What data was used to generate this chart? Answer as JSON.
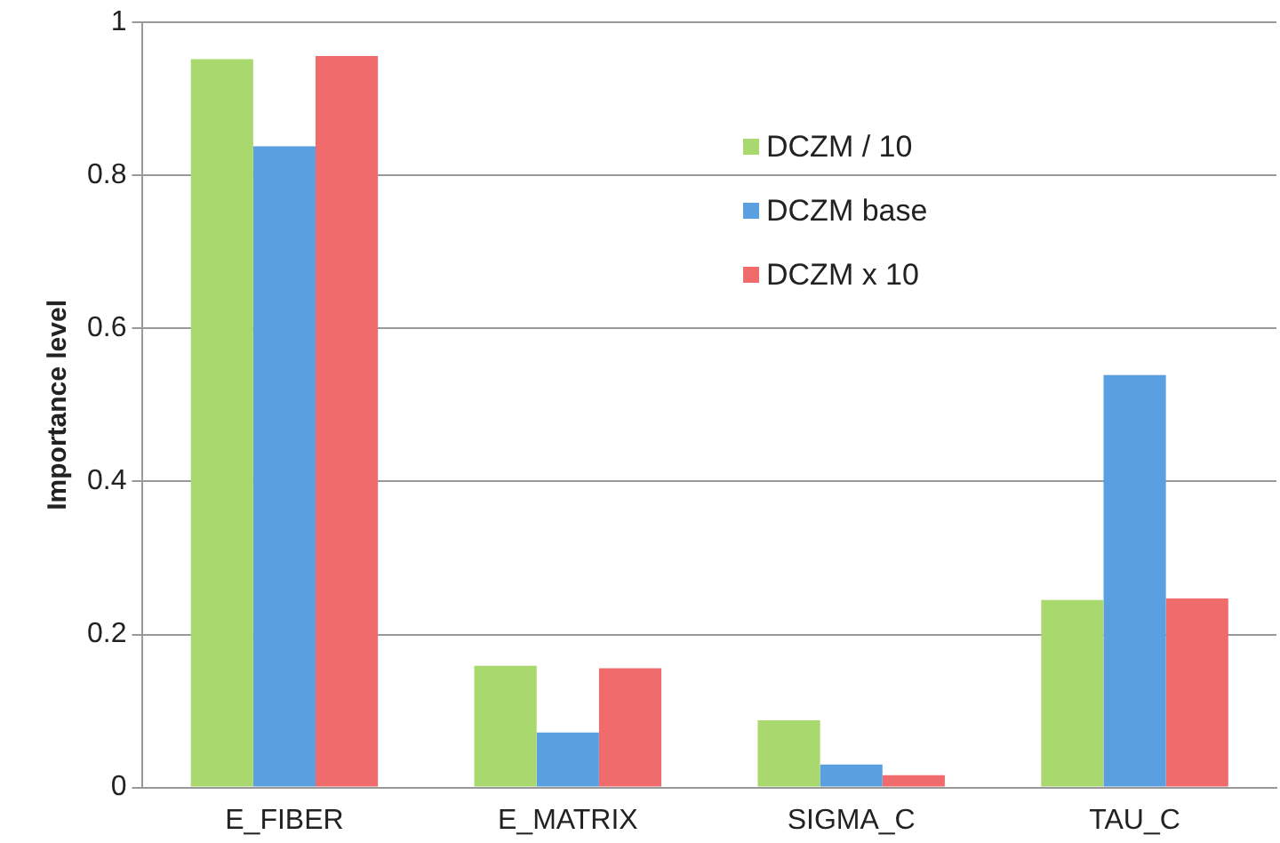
{
  "chart_data": {
    "type": "bar",
    "ylabel": "Importance level",
    "categories": [
      "E_FIBER",
      "E_MATRIX",
      "SIGMA_C",
      "TAU_C"
    ],
    "series": [
      {
        "name": "DCZM / 10",
        "color": "#a8d86e",
        "values": [
          0.952,
          0.159,
          0.088,
          0.245
        ]
      },
      {
        "name": "DCZM base",
        "color": "#5a9fe0",
        "values": [
          0.838,
          0.072,
          0.03,
          0.539
        ]
      },
      {
        "name": "DCZM x 10",
        "color": "#f06b6b",
        "values": [
          0.956,
          0.156,
          0.016,
          0.247
        ]
      }
    ],
    "ylim": [
      0,
      1
    ],
    "yticks": [
      0,
      0.2,
      0.4,
      0.6,
      0.8,
      1
    ],
    "grid": "y",
    "legend": "top right"
  }
}
